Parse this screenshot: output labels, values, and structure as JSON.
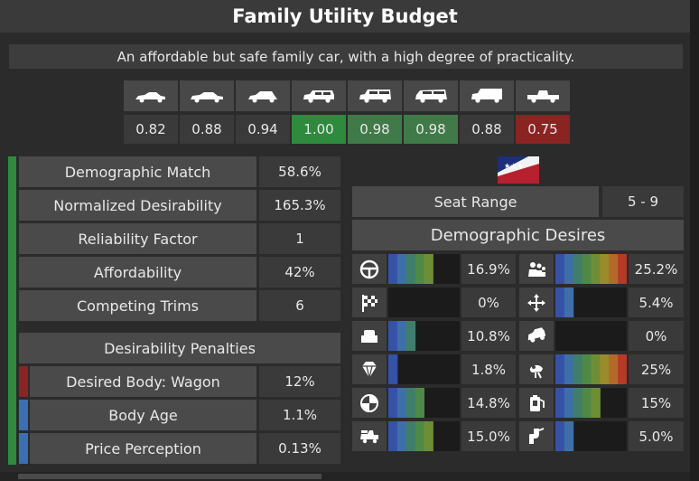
{
  "window": {
    "title": "Family Utility Budget"
  },
  "description": "An affordable but safe family car, with a high degree of practicality.",
  "body_types": [
    {
      "icon": "sedan-icon",
      "value": "0.82",
      "status": "neutral"
    },
    {
      "icon": "sedan-long-icon",
      "value": "0.88",
      "status": "neutral"
    },
    {
      "icon": "hatchback-icon",
      "value": "0.94",
      "status": "neutral"
    },
    {
      "icon": "suv-icon",
      "value": "1.00",
      "status": "best"
    },
    {
      "icon": "wagon-icon",
      "value": "0.98",
      "status": "good"
    },
    {
      "icon": "minivan-icon",
      "value": "0.98",
      "status": "good"
    },
    {
      "icon": "van-icon",
      "value": "0.88",
      "status": "neutral"
    },
    {
      "icon": "pickup-icon",
      "value": "0.75",
      "status": "bad"
    }
  ],
  "stats": [
    {
      "label": "Demographic Match",
      "value": "58.6%"
    },
    {
      "label": "Normalized Desirability",
      "value": "165.3%"
    },
    {
      "label": "Reliability Factor",
      "value": "1"
    },
    {
      "label": "Affordability",
      "value": "42%"
    },
    {
      "label": "Competing Trims",
      "value": "6"
    }
  ],
  "penalties": {
    "title": "Desirability Penalties",
    "items": [
      {
        "label": "Desired Body: Wagon",
        "value": "12%",
        "color": "#8b2323"
      },
      {
        "label": "Body Age",
        "value": "1.1%",
        "color": "#3a6fb5"
      },
      {
        "label": "Price Perception",
        "value": "0.13%",
        "color": "#3a6fb5"
      }
    ]
  },
  "seat": {
    "label": "Seat Range",
    "value": "5 - 9"
  },
  "desires": {
    "title": "Demographic Desires",
    "left": [
      {
        "icon": "steering-wheel-icon",
        "value": "16.9%",
        "level": 0.64
      },
      {
        "icon": "checkered-flag-icon",
        "value": "0%",
        "level": 0.0
      },
      {
        "icon": "seat-comfort-icon",
        "value": "10.8%",
        "level": 0.41
      },
      {
        "icon": "diamond-icon",
        "value": "1.8%",
        "level": 0.15
      },
      {
        "icon": "safety-icon",
        "value": "14.8%",
        "level": 0.56
      },
      {
        "icon": "utility-truck-icon",
        "value": "15.0%",
        "level": 0.57
      }
    ],
    "right": [
      {
        "icon": "family-icon",
        "value": "25.2%",
        "level": 0.96
      },
      {
        "icon": "drivability-icon",
        "value": "5.4%",
        "level": 0.27
      },
      {
        "icon": "offroad-car-icon",
        "value": "0%",
        "level": 0.0
      },
      {
        "icon": "reliability-wrench-icon",
        "value": "25%",
        "level": 0.96
      },
      {
        "icon": "fuel-economy-icon",
        "value": "15%",
        "level": 0.57
      },
      {
        "icon": "exhaust-environmental-icon",
        "value": "5.0%",
        "level": 0.27
      }
    ]
  },
  "colors": {
    "best": "#2e8b3e",
    "good": "#3f7a48",
    "bad": "#8b2323",
    "neutral": "#3a3a3a",
    "gradient": [
      "#3651a8",
      "#3f6fa8",
      "#3f7e6a",
      "#4e8a45",
      "#6e8e35",
      "#9a8b2c",
      "#b26a28",
      "#b53a2a"
    ]
  }
}
